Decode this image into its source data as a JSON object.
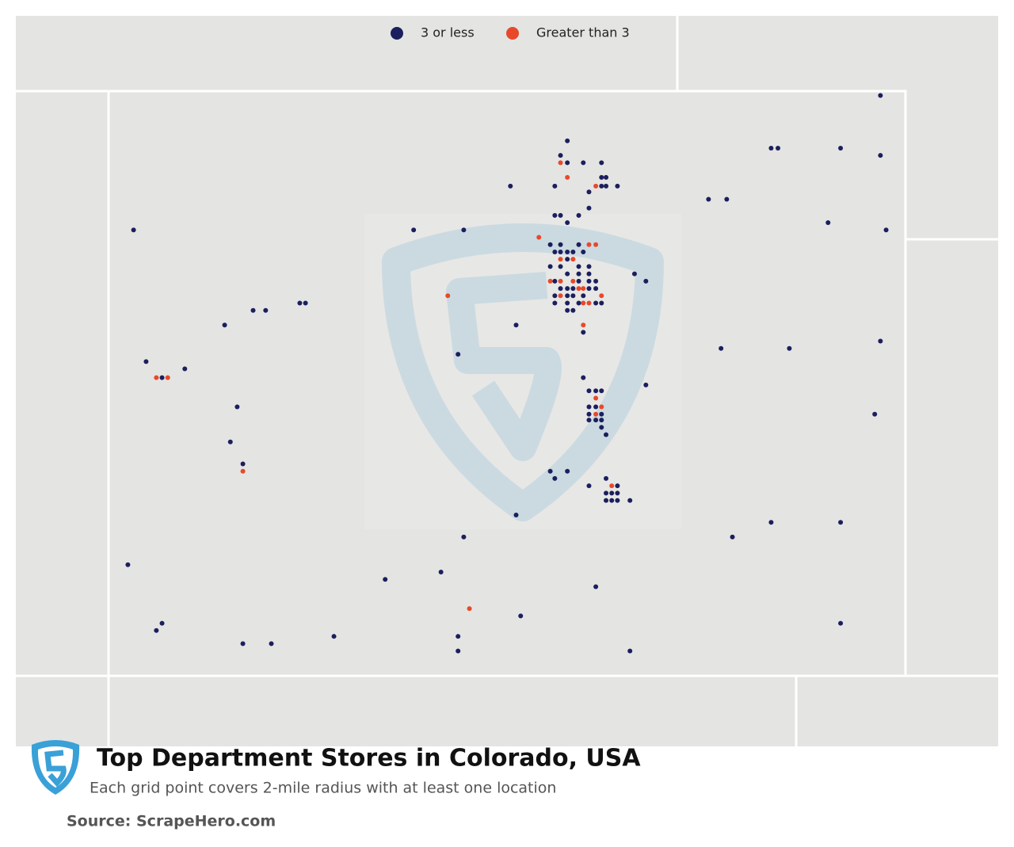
{
  "chart_data": {
    "type": "map",
    "title": "Top Department Stores in Colorado, USA",
    "subtitle": "Each grid point covers 2-mile radius with at least one location",
    "source": "Source: ScrapeHero.com",
    "xlim": [
      -109.05,
      -102.05
    ],
    "ylim": [
      37,
      41
    ],
    "series": [
      {
        "name": "3 or less",
        "color": "#1b1f5e",
        "x": [
          -105.02,
          -105.08,
          -105.02,
          -104.88,
          -104.72,
          -105.52,
          -105.13,
          -104.72,
          -104.68,
          -104.72,
          -104.68,
          -104.58,
          -104.83,
          -104.83,
          -105.13,
          -105.08,
          -104.92,
          -105.02,
          -102.27,
          -103.23,
          -103.17,
          -102.62,
          -102.27,
          -103.78,
          -103.62,
          -102.73,
          -102.22,
          -108.83,
          -106.37,
          -105.93,
          -107.78,
          -107.67,
          -107.37,
          -107.32,
          -108.03,
          -108.72,
          -108.58,
          -108.38,
          -107.92,
          -107.98,
          -107.87,
          -105.98,
          -105.47,
          -105.17,
          -105.08,
          -104.92,
          -105.13,
          -105.08,
          -105.02,
          -104.97,
          -104.88,
          -105.02,
          -105.17,
          -105.08,
          -104.92,
          -104.83,
          -105.02,
          -104.92,
          -104.83,
          -105.13,
          -104.92,
          -104.83,
          -104.77,
          -105.08,
          -105.02,
          -104.97,
          -104.83,
          -104.77,
          -105.13,
          -105.02,
          -104.97,
          -104.88,
          -105.13,
          -105.02,
          -104.92,
          -104.77,
          -104.72,
          -105.02,
          -104.97,
          -104.88,
          -104.43,
          -104.33,
          -104.88,
          -104.83,
          -104.77,
          -104.72,
          -104.83,
          -104.77,
          -104.83,
          -104.72,
          -104.83,
          -104.77,
          -104.72,
          -104.72,
          -104.68,
          -104.33,
          -105.17,
          -105.13,
          -105.02,
          -104.83,
          -104.68,
          -104.58,
          -104.68,
          -104.63,
          -104.58,
          -104.68,
          -104.63,
          -104.58,
          -104.47,
          -105.47,
          -103.67,
          -103.07,
          -102.27,
          -102.32,
          -103.23,
          -102.62,
          -103.57,
          -102.62,
          -105.93,
          -108.88,
          -106.13,
          -106.62,
          -104.77,
          -105.43,
          -108.58,
          -108.63,
          -107.07,
          -105.98,
          -107.87,
          -107.62,
          -105.98,
          -104.47
        ],
        "y": [
          40.66,
          40.56,
          40.51,
          40.51,
          40.51,
          40.35,
          40.35,
          40.41,
          40.41,
          40.35,
          40.35,
          40.35,
          40.31,
          40.2,
          40.15,
          40.15,
          40.15,
          40.1,
          40.97,
          40.61,
          40.61,
          40.61,
          40.56,
          40.26,
          40.26,
          40.1,
          40.05,
          40.05,
          40.05,
          40.05,
          39.5,
          39.5,
          39.55,
          39.55,
          39.4,
          39.15,
          39.04,
          39.1,
          38.84,
          38.6,
          38.45,
          39.2,
          39.4,
          39.95,
          39.95,
          39.95,
          39.9,
          39.9,
          39.9,
          39.9,
          39.9,
          39.85,
          39.8,
          39.8,
          39.8,
          39.8,
          39.75,
          39.75,
          39.75,
          39.7,
          39.7,
          39.7,
          39.7,
          39.65,
          39.65,
          39.65,
          39.65,
          39.65,
          39.6,
          39.6,
          39.6,
          39.6,
          39.55,
          39.55,
          39.55,
          39.55,
          39.55,
          39.5,
          39.5,
          39.35,
          39.75,
          39.7,
          39.04,
          38.95,
          38.95,
          38.95,
          38.84,
          38.84,
          38.79,
          38.79,
          38.75,
          38.75,
          38.75,
          38.7,
          38.65,
          38.99,
          38.4,
          38.35,
          38.4,
          38.3,
          38.35,
          38.3,
          38.25,
          38.25,
          38.25,
          38.2,
          38.2,
          38.2,
          38.2,
          38.1,
          39.24,
          39.24,
          39.29,
          38.79,
          38.05,
          38.05,
          37.95,
          37.36,
          37.95,
          37.76,
          37.71,
          37.66,
          37.61,
          37.41,
          37.36,
          37.31,
          37.27,
          37.27,
          37.22,
          37.22,
          37.17,
          37.17
        ]
      },
      {
        "name": "Greater than 3",
        "color": "#e8492a",
        "x": [
          -105.08,
          -105.02,
          -104.77,
          -105.27,
          -106.07,
          -108.63,
          -108.53,
          -107.87,
          -104.83,
          -104.77,
          -105.08,
          -104.97,
          -105.17,
          -105.08,
          -104.97,
          -104.92,
          -104.88,
          -105.08,
          -104.88,
          -104.83,
          -104.72,
          -104.88,
          -104.77,
          -104.72,
          -104.77,
          -104.63,
          -105.88
        ],
        "y": [
          40.51,
          40.41,
          40.35,
          40.0,
          39.6,
          39.04,
          39.04,
          38.4,
          39.95,
          39.95,
          39.85,
          39.85,
          39.7,
          39.7,
          39.7,
          39.65,
          39.65,
          39.6,
          39.55,
          39.55,
          39.6,
          39.4,
          38.9,
          38.84,
          38.79,
          38.3,
          37.46
        ]
      }
    ]
  }
}
